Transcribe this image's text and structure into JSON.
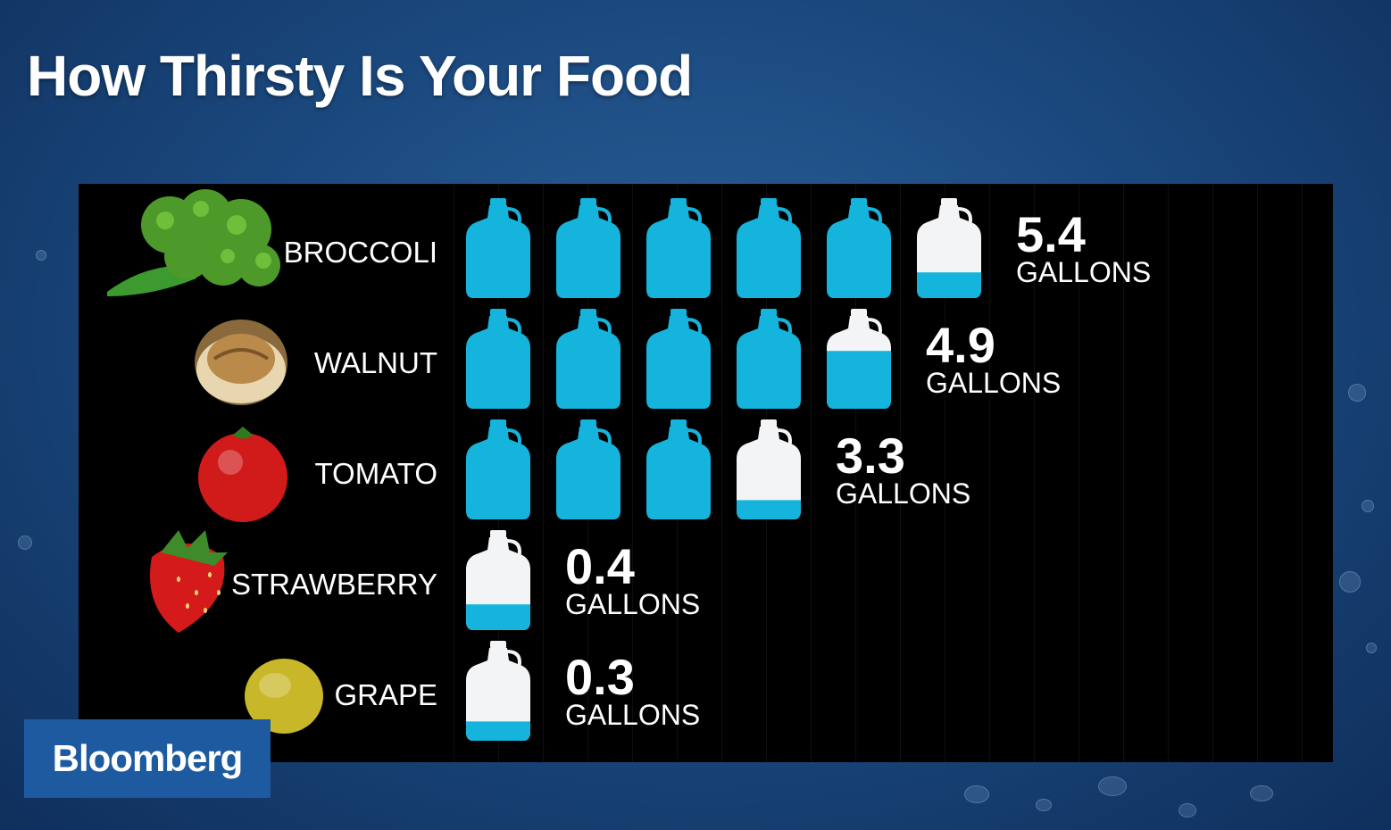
{
  "title": "How Thirsty Is Your Food",
  "logo": "Bloomberg",
  "colors": {
    "water": "#14b4dc",
    "empty": "#f2f4f6",
    "panel": "#000000"
  },
  "chart_data": {
    "type": "bar",
    "title": "How Thirsty Is Your Food",
    "unit": "GALLONS",
    "categories": [
      "BROCCOLI",
      "WALNUT",
      "TOMATO",
      "STRAWBERRY",
      "GRAPE"
    ],
    "values": [
      5.4,
      4.9,
      3.3,
      0.4,
      0.3
    ],
    "value_labels": [
      "5.4",
      "4.9",
      "3.3",
      "0.4",
      "0.3"
    ],
    "icons": [
      "broccoli-icon",
      "walnut-icon",
      "tomato-icon",
      "strawberry-icon",
      "grape-icon"
    ]
  }
}
